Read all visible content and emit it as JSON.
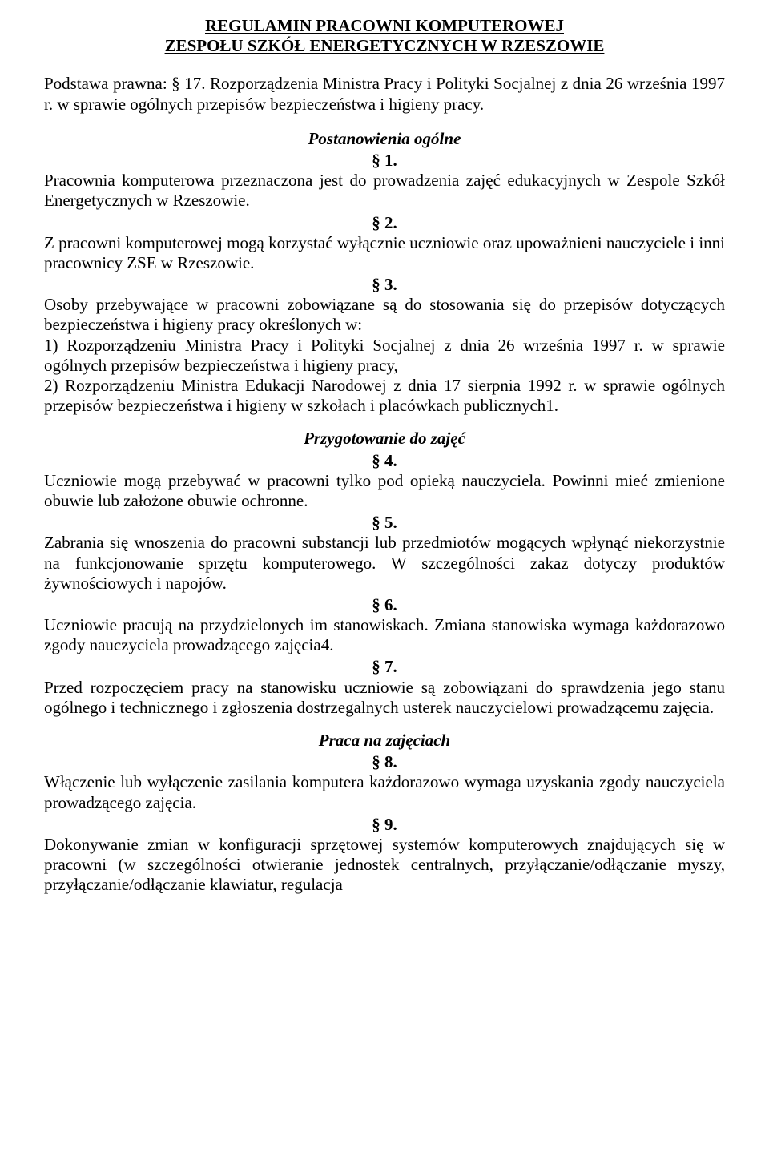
{
  "title_line1": "REGULAMIN PRACOWNI KOMPUTEROWEJ",
  "title_line2": "ZESPOŁU SZKÓŁ ENERGETYCZNYCH W RZESZOWIE",
  "legal_basis_label": "Podstawa prawna",
  "legal_basis_text": ": § 17. Rozporządzenia Ministra Pracy i Polityki Socjalnej z dnia 26 września 1997 r. w sprawie ogólnych przepisów bezpieczeństwa i higieny pracy.",
  "sections": {
    "s1": {
      "heading": "Postanowienia ogólne",
      "p1_num": "§ 1.",
      "p1_text": "Pracownia komputerowa przeznaczona jest do prowadzenia zajęć edukacyjnych w Zespole Szkół Energetycznych w Rzeszowie.",
      "p2_num": "§ 2.",
      "p2_text": "Z pracowni komputerowej mogą korzystać wyłącznie uczniowie oraz upoważnieni nauczyciele i inni pracownicy ZSE w Rzeszowie.",
      "p3_num": "§ 3.",
      "p3_text": "Osoby przebywające w pracowni zobowiązane są do stosowania się do przepisów dotyczących bezpieczeństwa i higieny pracy określonych w:\n1) Rozporządzeniu Ministra Pracy i Polityki Socjalnej z dnia 26 września 1997 r. w sprawie ogólnych przepisów bezpieczeństwa i higieny pracy,\n2) Rozporządzeniu Ministra Edukacji Narodowej z dnia 17 sierpnia 1992 r. w sprawie ogólnych przepisów bezpieczeństwa i higieny w szkołach i placówkach publicznych1."
    },
    "s2": {
      "heading": "Przygotowanie do zajęć",
      "p4_num": "§ 4.",
      "p4_text": "Uczniowie mogą przebywać w pracowni tylko pod opieką nauczyciela. Powinni mieć zmienione obuwie lub założone obuwie ochronne.",
      "p5_num": "§ 5.",
      "p5_text": "Zabrania się wnoszenia do pracowni substancji lub przedmiotów mogących wpłynąć niekorzystnie na funkcjonowanie sprzętu komputerowego. W szczególności zakaz dotyczy produktów żywnościowych i napojów.",
      "p6_num": "§ 6.",
      "p6_text": "Uczniowie pracują na przydzielonych im stanowiskach. Zmiana stanowiska wymaga każdorazowo zgody nauczyciela prowadzącego zajęcia4.",
      "p7_num": "§ 7.",
      "p7_text": "Przed rozpoczęciem pracy na stanowisku uczniowie są zobowiązani do sprawdzenia jego stanu ogólnego i technicznego i zgłoszenia dostrzegalnych usterek nauczycielowi prowadzącemu zajęcia."
    },
    "s3": {
      "heading": "Praca na zajęciach",
      "p8_num": "§ 8.",
      "p8_text": "Włączenie lub wyłączenie zasilania komputera każdorazowo wymaga uzyskania zgody nauczyciela prowadzącego zajęcia.",
      "p9_num": "§ 9.",
      "p9_text": "Dokonywanie zmian w konfiguracji sprzętowej systemów komputerowych znajdujących się w pracowni (w szczególności otwieranie jednostek centralnych, przyłączanie/odłączanie myszy, przyłączanie/odłączanie klawiatur, regulacja"
    }
  }
}
